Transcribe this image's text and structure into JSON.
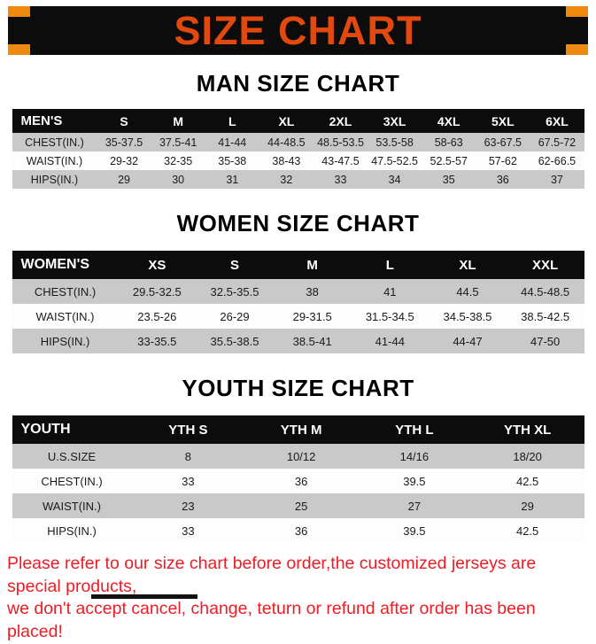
{
  "banner": {
    "title": "SIZE CHART",
    "title_color": "#e2490f",
    "bg_color": "#0c0c0c",
    "corner_color": "#ef8a10"
  },
  "sections": [
    {
      "id": "men",
      "heading": "MAN SIZE CHART",
      "table": {
        "header": [
          "MEN'S",
          "S",
          "M",
          "L",
          "XL",
          "2XL",
          "3XL",
          "4XL",
          "5XL",
          "6XL"
        ],
        "rows": [
          [
            "CHEST(IN.)",
            "35-37.5",
            "37.5-41",
            "41-44",
            "44-48.5",
            "48.5-53.5",
            "53.5-58",
            "58-63",
            "63-67.5",
            "67.5-72"
          ],
          [
            "WAIST(IN.)",
            "29-32",
            "32-35",
            "35-38",
            "38-43",
            "43-47.5",
            "47.5-52.5",
            "52.5-57",
            "57-62",
            "62-66.5"
          ],
          [
            "HIPS(IN.)",
            "29",
            "30",
            "31",
            "32",
            "33",
            "34",
            "35",
            "36",
            "37"
          ]
        ]
      }
    },
    {
      "id": "women",
      "heading": "WOMEN SIZE CHART",
      "table": {
        "header": [
          "WOMEN'S",
          "XS",
          "S",
          "M",
          "L",
          "XL",
          "XXL"
        ],
        "rows": [
          [
            "CHEST(IN.)",
            "29.5-32.5",
            "32.5-35.5",
            "38",
            "41",
            "44.5",
            "44.5-48.5"
          ],
          [
            "WAIST(IN.)",
            "23.5-26",
            "26-29",
            "29-31.5",
            "31.5-34.5",
            "34.5-38.5",
            "38.5-42.5"
          ],
          [
            "HIPS(IN.)",
            "33-35.5",
            "35.5-38.5",
            "38.5-41",
            "41-44",
            "44-47",
            "47-50"
          ]
        ]
      }
    },
    {
      "id": "youth",
      "heading": "YOUTH SIZE CHART",
      "table": {
        "header": [
          "YOUTH",
          "YTH S",
          "YTH M",
          "YTH L",
          "YTH XL"
        ],
        "rows": [
          [
            "U.S.SIZE",
            "8",
            "10/12",
            "14/16",
            "18/20"
          ],
          [
            "CHEST(IN.)",
            "33",
            "36",
            "39.5",
            "42.5"
          ],
          [
            "WAIST(IN.)",
            "23",
            "25",
            "27",
            "29"
          ],
          [
            "HIPS(IN.)",
            "33",
            "36",
            "39.5",
            "42.5"
          ]
        ]
      }
    }
  ],
  "footer": {
    "line1": "Please refer to our size chart before order,the customized jerseys are special products,",
    "line2": "we don't accept cancel, change, teturn or refund after order has been placed!"
  },
  "colors": {
    "row_alt_gray": "#c9c9c9",
    "footer_red": "#ee1c25"
  }
}
